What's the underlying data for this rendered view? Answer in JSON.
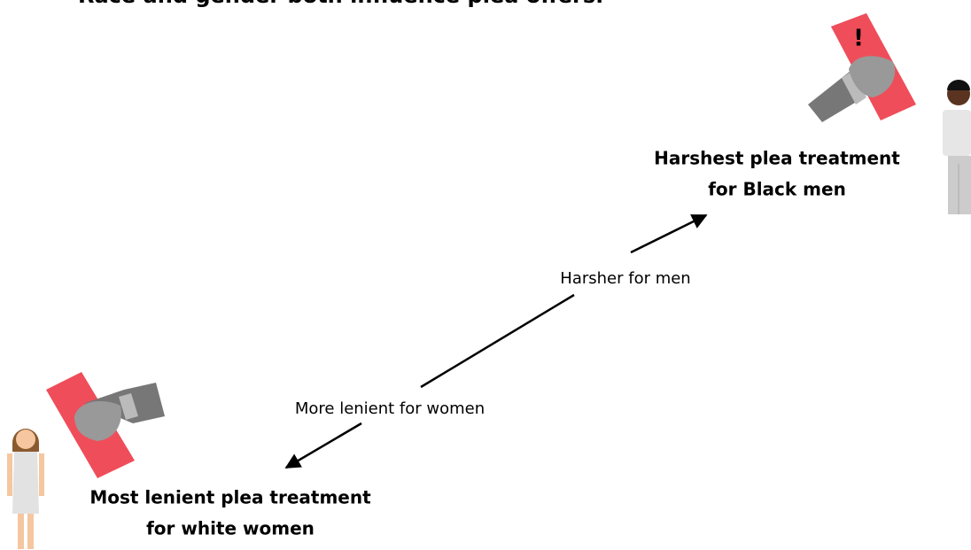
{
  "header": {
    "title": "Race and gender both influence plea offers."
  },
  "endpoints": [
    {
      "lines": [
        "Harshest plea treatment",
        "for Black men"
      ]
    },
    {
      "lines": [
        "Most lenient plea treatment",
        "for white women"
      ]
    }
  ],
  "arrow_labels": [
    "Harsher for men",
    "More lenient for women"
  ],
  "alert_mark": "!"
}
